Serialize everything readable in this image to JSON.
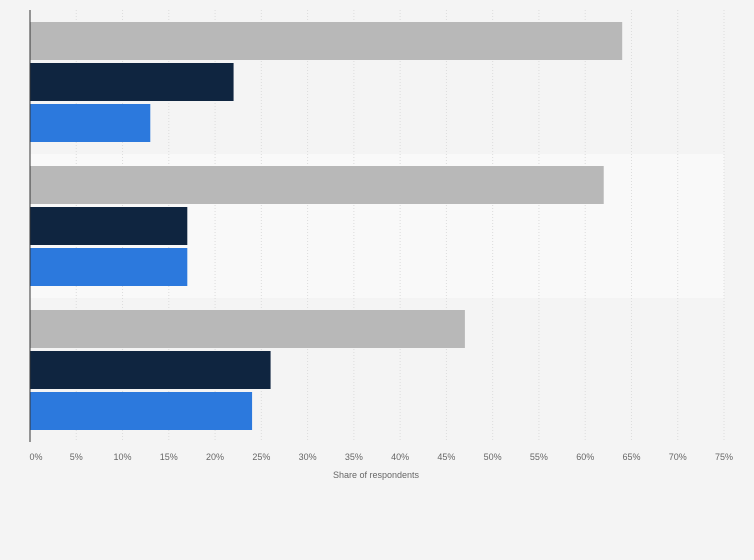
{
  "chart_data": {
    "type": "bar",
    "orientation": "horizontal",
    "categories": [
      "",
      "",
      ""
    ],
    "series": [
      {
        "values": [
          64,
          62,
          47
        ],
        "color": "#b8b8b8"
      },
      {
        "values": [
          22,
          17,
          26
        ],
        "color": "#0f2540"
      },
      {
        "values": [
          13,
          17,
          24
        ],
        "color": "#2c79dd"
      }
    ],
    "xlabel": "Share of respondents",
    "xlim": [
      0,
      75
    ],
    "x_ticks": [
      "0%",
      "5%",
      "10%",
      "15%",
      "20%",
      "25%",
      "30%",
      "35%",
      "40%",
      "45%",
      "50%",
      "55%",
      "60%",
      "65%",
      "70%",
      "75%"
    ],
    "grid": true,
    "legend": "none"
  }
}
